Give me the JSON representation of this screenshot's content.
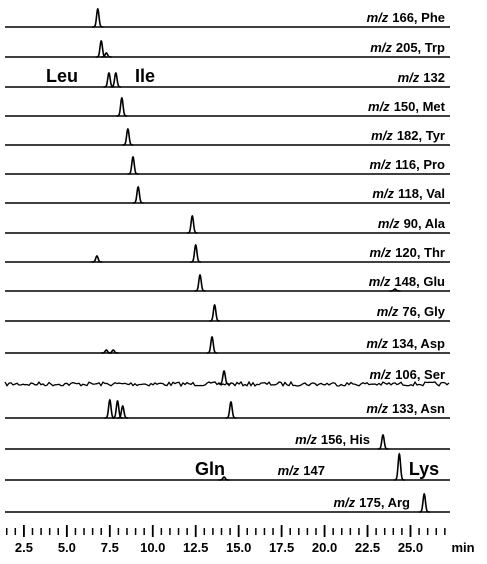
{
  "chart_data": {
    "type": "chromatogram",
    "mz_prefix": "m/z",
    "x_label": "min",
    "xlim": [
      1.4,
      27.3
    ],
    "xticks": [
      2.5,
      {
        "value": 5,
        "label": "5.0"
      },
      7.5,
      {
        "value": 10,
        "label": "10.0"
      },
      12.5,
      {
        "value": 15,
        "label": "15.0"
      },
      17.5,
      {
        "value": 20,
        "label": "20.0"
      },
      22.5,
      {
        "value": 25,
        "label": "25.0"
      }
    ],
    "xminor": 0.5,
    "color": "#000000",
    "series": [
      {
        "name": "166, Phe",
        "peaks": [
          {
            "x": 6.8,
            "height": 18
          }
        ]
      },
      {
        "name": "205, Trp",
        "peaks": [
          {
            "x": 7.0,
            "height": 16
          },
          {
            "x": 7.3,
            "height": 4
          }
        ]
      },
      {
        "name": "132",
        "annotations": [
          "Leu",
          "Ile"
        ],
        "peaks": [
          {
            "x": 7.45,
            "height": 14
          },
          {
            "x": 7.85,
            "height": 14
          }
        ]
      },
      {
        "name": "150, Met",
        "peaks": [
          {
            "x": 8.2,
            "height": 18
          }
        ]
      },
      {
        "name": "182, Tyr",
        "peaks": [
          {
            "x": 8.55,
            "height": 16
          }
        ]
      },
      {
        "name": "116, Pro",
        "peaks": [
          {
            "x": 8.85,
            "height": 17
          }
        ]
      },
      {
        "name": "118, Val",
        "peaks": [
          {
            "x": 9.15,
            "height": 16
          }
        ]
      },
      {
        "name": "90, Ala",
        "peaks": [
          {
            "x": 12.3,
            "height": 17
          }
        ]
      },
      {
        "name": "120, Thr",
        "peaks": [
          {
            "x": 6.75,
            "height": 6
          },
          {
            "x": 12.5,
            "height": 17
          }
        ]
      },
      {
        "name": "148, Glu",
        "peaks": [
          {
            "x": 12.75,
            "height": 16
          },
          {
            "x": 24.1,
            "height": 2
          }
        ]
      },
      {
        "name": "76, Gly",
        "peaks": [
          {
            "x": 13.6,
            "height": 16
          }
        ]
      },
      {
        "name": "134, Asp",
        "peaks": [
          {
            "x": 7.3,
            "height": 3
          },
          {
            "x": 7.7,
            "height": 3
          },
          {
            "x": 13.45,
            "height": 16
          }
        ]
      },
      {
        "name": "106, Ser",
        "noisy": true,
        "peaks": [
          {
            "x": 14.15,
            "height": 13
          }
        ]
      },
      {
        "name": "133, Asn",
        "peaks": [
          {
            "x": 7.5,
            "height": 18
          },
          {
            "x": 7.95,
            "height": 17
          },
          {
            "x": 8.25,
            "height": 12
          },
          {
            "x": 14.55,
            "height": 16
          }
        ]
      },
      {
        "name": "156, His",
        "peaks": [
          {
            "x": 23.4,
            "height": 14
          }
        ]
      },
      {
        "name": "147",
        "annotations": [
          "Gln",
          "Lys"
        ],
        "peaks": [
          {
            "x": 14.15,
            "height": 3
          },
          {
            "x": 24.35,
            "height": 26
          }
        ]
      },
      {
        "name": "175, Arg",
        "peaks": [
          {
            "x": 25.8,
            "height": 18
          }
        ]
      }
    ]
  }
}
